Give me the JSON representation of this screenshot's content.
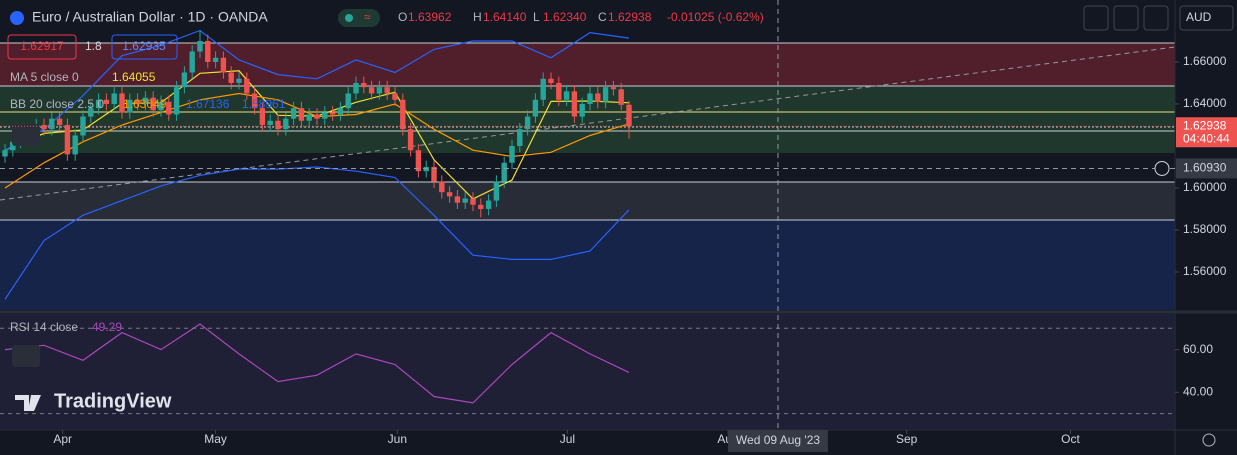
{
  "header": {
    "title": "Euro / Australian Dollar · 1D · OANDA",
    "ohlc": [
      {
        "key": "O",
        "value": "1.63962"
      },
      {
        "key": "H",
        "value": "1.64140"
      },
      {
        "key": "L",
        "value": "1.62340"
      },
      {
        "key": "C",
        "value": "1.62938"
      }
    ],
    "change": "-0.01025 (-0.62%)",
    "sell": "1.62917",
    "spread": "1.8",
    "buy": "1.62935",
    "currency": "AUD"
  },
  "chart_data": {
    "type": "candlestick",
    "open": [
      1.615,
      1.618,
      1.622,
      1.626,
      1.624,
      1.63,
      1.628,
      1.633,
      1.63,
      1.616,
      1.625,
      1.634,
      1.638,
      1.642,
      1.64,
      1.645,
      1.636,
      1.642,
      1.64,
      1.643,
      1.637,
      1.641,
      1.635,
      1.648,
      1.655,
      1.665,
      1.67,
      1.66,
      1.662,
      1.655,
      1.65,
      1.652,
      1.645,
      1.638,
      1.63,
      1.632,
      1.628,
      1.633,
      1.638,
      1.632,
      1.635,
      1.633,
      1.636,
      1.635,
      1.638,
      1.645,
      1.65,
      1.648,
      1.645,
      1.648,
      1.645,
      1.642,
      1.628,
      1.618,
      1.608,
      1.61,
      1.603,
      1.598,
      1.596,
      1.593,
      1.595,
      1.592,
      1.59,
      1.594,
      1.603,
      1.612,
      1.62,
      1.628,
      1.634,
      1.642,
      1.652,
      1.65,
      1.642,
      1.646,
      1.634,
      1.64,
      1.645,
      1.641,
      1.648,
      1.647,
      1.63962
    ],
    "high": [
      1.621,
      1.625,
      1.629,
      1.629,
      1.633,
      1.633,
      1.636,
      1.636,
      1.633,
      1.628,
      1.637,
      1.641,
      1.645,
      1.645,
      1.648,
      1.648,
      1.645,
      1.645,
      1.646,
      1.646,
      1.644,
      1.644,
      1.651,
      1.658,
      1.668,
      1.675,
      1.673,
      1.665,
      1.665,
      1.658,
      1.655,
      1.655,
      1.648,
      1.641,
      1.635,
      1.635,
      1.636,
      1.641,
      1.641,
      1.638,
      1.638,
      1.639,
      1.639,
      1.641,
      1.648,
      1.653,
      1.653,
      1.651,
      1.651,
      1.651,
      1.648,
      1.645,
      1.631,
      1.621,
      1.613,
      1.613,
      1.606,
      1.601,
      1.599,
      1.598,
      1.598,
      1.595,
      1.597,
      1.606,
      1.615,
      1.623,
      1.631,
      1.637,
      1.645,
      1.655,
      1.655,
      1.653,
      1.649,
      1.649,
      1.643,
      1.648,
      1.648,
      1.651,
      1.651,
      1.65,
      1.6414
    ],
    "low": [
      1.612,
      1.615,
      1.619,
      1.621,
      1.621,
      1.625,
      1.625,
      1.627,
      1.613,
      1.613,
      1.622,
      1.631,
      1.635,
      1.637,
      1.637,
      1.633,
      1.633,
      1.637,
      1.637,
      1.634,
      1.634,
      1.632,
      1.632,
      1.645,
      1.652,
      1.662,
      1.657,
      1.657,
      1.652,
      1.647,
      1.647,
      1.642,
      1.635,
      1.627,
      1.627,
      1.625,
      1.625,
      1.63,
      1.629,
      1.629,
      1.63,
      1.63,
      1.632,
      1.632,
      1.635,
      1.642,
      1.645,
      1.642,
      1.642,
      1.642,
      1.639,
      1.625,
      1.615,
      1.605,
      1.605,
      1.6,
      1.595,
      1.593,
      1.59,
      1.59,
      1.589,
      1.586,
      1.587,
      1.591,
      1.6,
      1.609,
      1.617,
      1.625,
      1.631,
      1.639,
      1.647,
      1.639,
      1.639,
      1.631,
      1.631,
      1.637,
      1.638,
      1.638,
      1.644,
      1.637,
      1.6234
    ],
    "close": [
      1.618,
      1.622,
      1.626,
      1.624,
      1.63,
      1.628,
      1.633,
      1.63,
      1.616,
      1.625,
      1.634,
      1.638,
      1.642,
      1.64,
      1.645,
      1.636,
      1.642,
      1.64,
      1.643,
      1.637,
      1.641,
      1.635,
      1.648,
      1.655,
      1.665,
      1.67,
      1.66,
      1.662,
      1.655,
      1.65,
      1.652,
      1.645,
      1.638,
      1.63,
      1.632,
      1.628,
      1.633,
      1.638,
      1.632,
      1.635,
      1.633,
      1.636,
      1.635,
      1.638,
      1.645,
      1.65,
      1.648,
      1.645,
      1.648,
      1.645,
      1.642,
      1.628,
      1.618,
      1.608,
      1.61,
      1.603,
      1.598,
      1.596,
      1.593,
      1.595,
      1.592,
      1.59,
      1.594,
      1.603,
      1.612,
      1.62,
      1.628,
      1.634,
      1.642,
      1.652,
      1.65,
      1.642,
      1.646,
      1.634,
      1.64,
      1.645,
      1.641,
      1.648,
      1.647,
      1.6396,
      1.62938
    ],
    "up_color": "#26a69a",
    "down_color": "#ef5350",
    "xlim": [
      -0.641,
      150
    ],
    "xticks": [
      {
        "value": 7.4,
        "label": "Apr"
      },
      {
        "value": 27,
        "label": "May"
      },
      {
        "value": 50.3,
        "label": "Jun"
      },
      {
        "value": 72.1,
        "label": "Jul"
      },
      {
        "value": 92.7,
        "label": "Aug"
      },
      {
        "value": 115.6,
        "label": "Sep"
      },
      {
        "value": 136.6,
        "label": "Oct"
      }
    ],
    "ylim": [
      1.5419,
      1.6895
    ],
    "yticks": [
      {
        "value": 1.66,
        "label": "1.66000"
      },
      {
        "value": 1.64,
        "label": "1.64000"
      },
      {
        "value": 1.6,
        "label": "1.60000"
      },
      {
        "value": 1.58,
        "label": "1.58000"
      },
      {
        "value": 1.56,
        "label": "1.56000"
      }
    ],
    "last_price": {
      "value": 1.62938,
      "label": "1.62938",
      "countdown": "04:40:44"
    },
    "crosshair": {
      "x": 99.1,
      "x_label": "Wed 09 Aug '23",
      "y": 1.6093,
      "y_label": "1.60930"
    },
    "indicator_x": [
      0,
      5,
      10,
      15,
      20,
      25,
      30,
      35,
      40,
      45,
      50,
      55,
      60,
      65,
      70,
      75,
      80
    ],
    "indicators": [
      {
        "label": "MA 5 close 0",
        "value_labels": [
          "1.64055"
        ],
        "lines": [
          {
            "color": "#f0e130",
            "values": [
              1.618,
              1.626,
              1.6276,
              1.6402,
              1.6406,
              1.6546,
              1.6558,
              1.6346,
              1.6342,
              1.6408,
              1.6456,
              1.6134,
              1.5948,
              1.6038,
              1.6412,
              1.6414,
              1.64055
            ]
          }
        ]
      },
      {
        "label": "BB 20 close 2.5 0",
        "value_labels": [
          "1.63049",
          "1.67136",
          "1.58961"
        ],
        "lines": [
          {
            "color": "#ff9800",
            "values": [
              1.6,
              1.612,
              1.622,
              1.63,
              1.636,
              1.642,
              1.645,
              1.642,
              1.634,
              1.635,
              1.64,
              1.628,
              1.618,
              1.615,
              1.617,
              1.625,
              1.63049
            ]
          },
          {
            "color": "#2962ff",
            "values": [
              1.618,
              1.628,
              1.644,
              1.663,
              1.668,
              1.675,
              1.661,
              1.654,
              1.652,
              1.661,
              1.655,
              1.666,
              1.67,
              1.67,
              1.662,
              1.674,
              1.67136
            ]
          },
          {
            "color": "#2962ff",
            "values": [
              1.547,
              1.575,
              1.587,
              1.594,
              1.601,
              1.606,
              1.609,
              1.609,
              1.61,
              1.608,
              1.605,
              1.587,
              1.568,
              1.566,
              1.566,
              1.57,
              1.58961
            ]
          }
        ]
      }
    ],
    "rsi": {
      "label": "RSI 14 close",
      "value_label": "49.29",
      "color": "#ab47bc",
      "values": [
        60,
        62,
        55,
        68,
        60,
        72,
        58,
        45,
        48,
        58,
        53,
        38,
        35,
        53,
        68,
        58,
        49.29
      ],
      "ylim": [
        22.3,
        76.7
      ],
      "yticks": [
        {
          "value": 60,
          "label": "60.00"
        },
        {
          "value": 40,
          "label": "40.00"
        }
      ],
      "bands": [
        70,
        30
      ]
    }
  },
  "brand": "TradingView"
}
